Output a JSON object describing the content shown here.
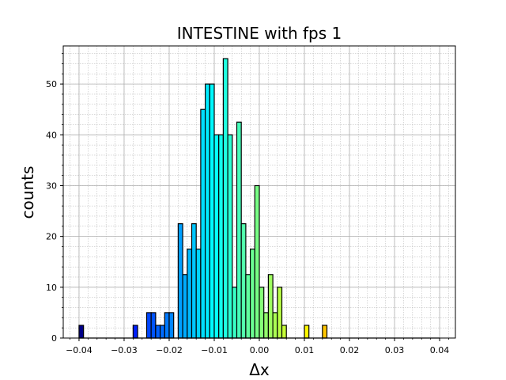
{
  "chart_data": {
    "type": "bar",
    "title": "INTESTINE with fps 1",
    "xlabel": "Δx",
    "ylabel": "counts",
    "xlim": [
      -0.0435,
      0.0435
    ],
    "ylim": [
      0,
      57.5
    ],
    "x_ticks": [
      -0.04,
      -0.03,
      -0.02,
      -0.01,
      0.0,
      0.01,
      0.02,
      0.03,
      0.04
    ],
    "x_tick_labels": [
      "−0.04",
      "−0.03",
      "−0.02",
      "−0.01",
      "0.00",
      "0.01",
      "0.02",
      "0.03",
      "0.04"
    ],
    "y_ticks": [
      0,
      10,
      20,
      30,
      40,
      50
    ],
    "y_tick_labels": [
      "0",
      "10",
      "20",
      "30",
      "40",
      "50"
    ],
    "grid": true,
    "minor_grid": true,
    "colormap": "jet",
    "bin_range": [
      -0.04,
      0.04
    ],
    "bin_count": 80,
    "values": [
      2.5,
      0,
      0,
      0,
      0,
      0,
      0,
      0,
      0,
      0,
      0,
      0,
      2.5,
      0,
      0,
      5,
      5,
      2.5,
      2.5,
      5,
      5,
      0,
      22.5,
      12.5,
      17.5,
      22.5,
      17.5,
      45,
      50,
      50,
      40,
      40,
      55,
      40,
      10,
      42.5,
      22.5,
      12.5,
      17.5,
      30,
      10,
      5,
      12.5,
      5,
      10,
      2.5,
      0,
      0,
      0,
      0,
      2.5,
      0,
      0,
      0,
      2.5,
      0,
      0,
      0,
      0,
      0,
      0,
      0,
      0,
      0,
      0,
      0,
      0,
      0,
      0,
      0,
      0,
      0,
      0,
      0,
      0,
      0,
      0,
      0,
      0,
      0
    ]
  }
}
